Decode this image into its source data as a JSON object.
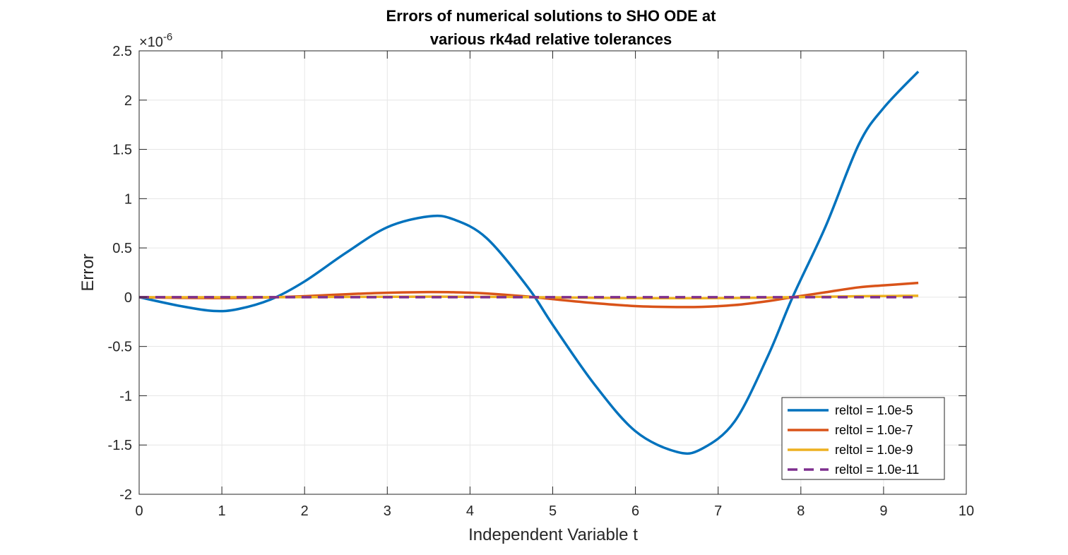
{
  "chart_data": {
    "type": "line",
    "title": [
      "Errors of numerical solutions to SHO ODE at",
      "various rk4ad relative tolerances"
    ],
    "xlabel": "Independent Variable t",
    "ylabel": "Error",
    "exponent_label": "×10",
    "exponent_power": "-6",
    "xlim": [
      0,
      10
    ],
    "ylim": [
      -2,
      2.5
    ],
    "x_ticks": [
      0,
      1,
      2,
      3,
      4,
      5,
      6,
      7,
      8,
      9,
      10
    ],
    "x_tick_labels": [
      "0",
      "1",
      "2",
      "3",
      "4",
      "5",
      "6",
      "7",
      "8",
      "9",
      "10"
    ],
    "y_ticks": [
      -2,
      -1.5,
      -1,
      -0.5,
      0,
      0.5,
      1,
      1.5,
      2,
      2.5
    ],
    "y_tick_labels": [
      "-2",
      "-1.5",
      "-1",
      "-0.5",
      "0",
      "0.5",
      "1",
      "1.5",
      "2",
      "2.5"
    ],
    "grid": true,
    "legend_position": "bottom-right",
    "x": [
      0,
      0.5,
      0.9,
      1.2,
      1.6,
      2.0,
      2.5,
      3.0,
      3.5,
      3.8,
      4.2,
      4.7,
      5.0,
      5.5,
      6.0,
      6.5,
      6.8,
      7.2,
      7.6,
      7.9,
      8.3,
      8.7,
      9.0,
      9.42
    ],
    "series": [
      {
        "name": "reltol = 1.0e-5",
        "color": "#0072BD",
        "dash": "solid",
        "values": [
          0,
          -0.09,
          -0.14,
          -0.12,
          -0.02,
          0.16,
          0.45,
          0.71,
          0.82,
          0.79,
          0.6,
          0.1,
          -0.28,
          -0.88,
          -1.36,
          -1.57,
          -1.54,
          -1.26,
          -0.6,
          0.0,
          0.72,
          1.55,
          1.92,
          2.29
        ]
      },
      {
        "name": "reltol = 1.0e-7",
        "color": "#D95319",
        "dash": "solid",
        "values": [
          0,
          -0.007,
          -0.009,
          -0.008,
          -0.001,
          0.01,
          0.03,
          0.045,
          0.052,
          0.05,
          0.038,
          0.006,
          -0.02,
          -0.06,
          -0.09,
          -0.1,
          -0.098,
          -0.08,
          -0.04,
          0.0,
          0.05,
          0.1,
          0.12,
          0.145
        ]
      },
      {
        "name": "reltol = 1.0e-9",
        "color": "#EDB120",
        "dash": "solid",
        "values": [
          0,
          -0.0007,
          -0.0009,
          -0.0008,
          -0.0001,
          0.001,
          0.003,
          0.0045,
          0.0052,
          0.005,
          0.0038,
          0.0006,
          -0.002,
          -0.006,
          -0.009,
          -0.01,
          -0.0098,
          -0.008,
          -0.004,
          0.0,
          0.005,
          0.01,
          0.012,
          0.0145
        ]
      },
      {
        "name": "reltol = 1.0e-11",
        "color": "#7E2F8E",
        "dash": "dashed",
        "values": [
          0,
          0,
          0,
          0,
          0,
          0,
          0,
          0,
          0,
          0,
          0,
          0,
          0,
          0,
          0,
          0,
          0,
          0,
          0,
          0,
          0,
          0,
          0,
          0
        ]
      }
    ]
  }
}
